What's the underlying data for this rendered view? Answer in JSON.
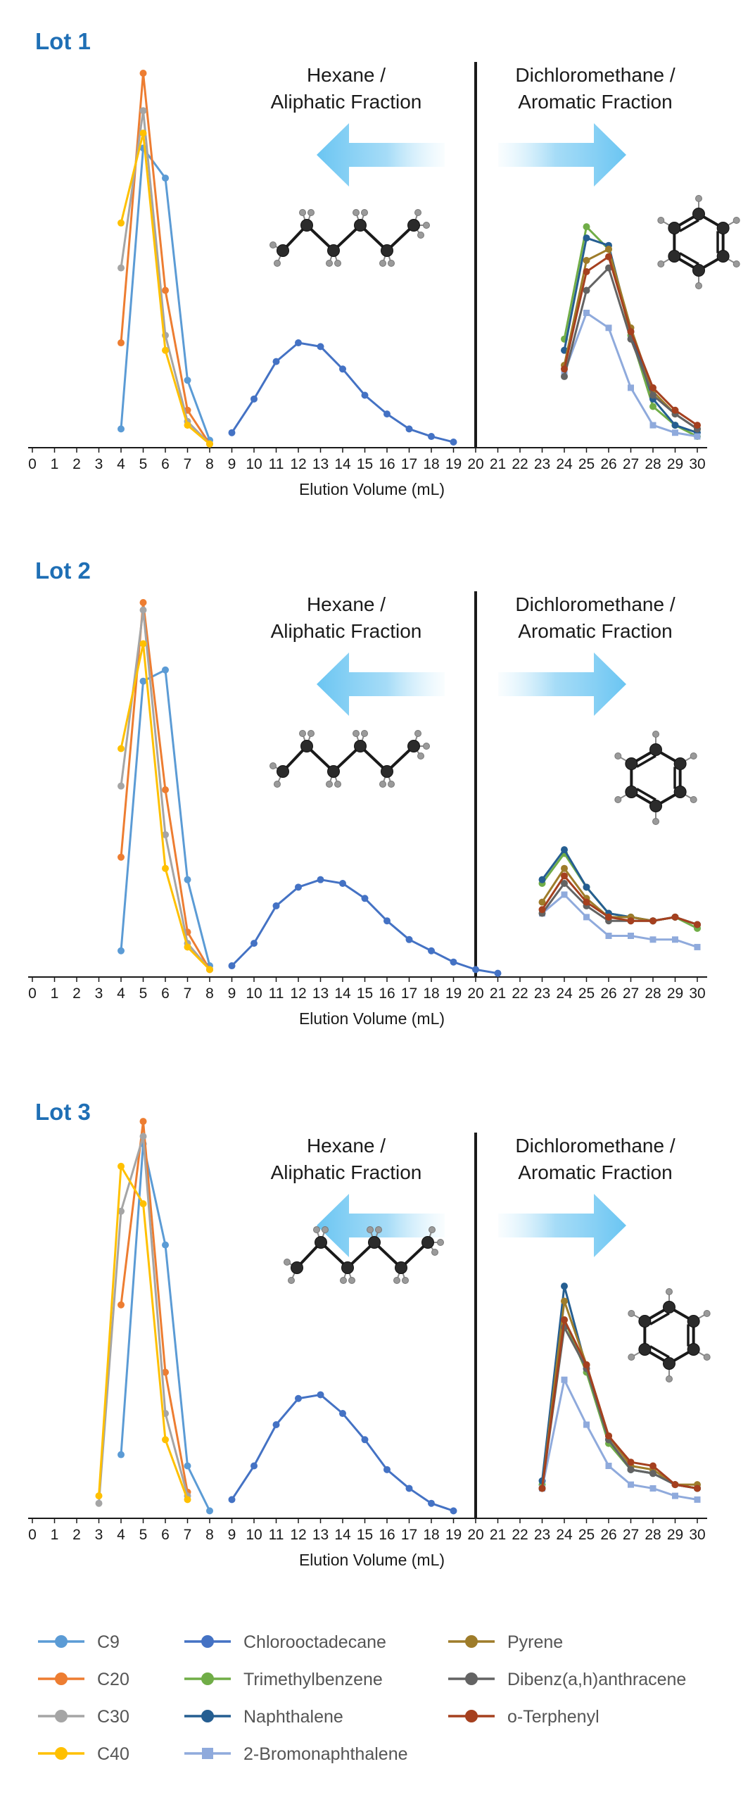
{
  "legend": [
    {
      "key": "C9",
      "label": "C9",
      "color": "#5b9bd5",
      "marker": "circle"
    },
    {
      "key": "C20",
      "label": "C20",
      "color": "#ed7d31",
      "marker": "circle"
    },
    {
      "key": "C30",
      "label": "C30",
      "color": "#a5a5a5",
      "marker": "circle"
    },
    {
      "key": "C40",
      "label": "C40",
      "color": "#ffc000",
      "marker": "circle"
    },
    {
      "key": "Chloro",
      "label": "Chlorooctadecane",
      "color": "#4472c4",
      "marker": "circle"
    },
    {
      "key": "TMB",
      "label": "Trimethylbenzene",
      "color": "#70ad47",
      "marker": "circle"
    },
    {
      "key": "Naph",
      "label": "Naphthalene",
      "color": "#255e91",
      "marker": "circle"
    },
    {
      "key": "BrNaph",
      "label": "2-Bromonaphthalene",
      "color": "#8faadc",
      "marker": "square"
    },
    {
      "key": "Pyrene",
      "label": "Pyrene",
      "color": "#9e7c2a",
      "marker": "circle"
    },
    {
      "key": "DBA",
      "label": "Dibenz(a,h)anthracene",
      "color": "#636363",
      "marker": "circle"
    },
    {
      "key": "oTer",
      "label": "o-Terphenyl",
      "color": "#a5401f",
      "marker": "circle"
    }
  ],
  "chart_data": [
    {
      "type": "line",
      "title": "Lot 1",
      "xlabel": "Elution Volume (mL)",
      "xlim": [
        0,
        30
      ],
      "ylim": [
        0,
        1
      ],
      "left_label": "Hexane / Aliphatic Fraction",
      "right_label": "Dichloromethane / Aromatic Fraction",
      "divider_x": 20,
      "series": [
        {
          "key": "C9",
          "x": [
            4,
            5,
            6,
            7,
            8
          ],
          "y": [
            0.05,
            0.8,
            0.72,
            0.18,
            0.02
          ]
        },
        {
          "key": "C20",
          "x": [
            4,
            5,
            6,
            7,
            8
          ],
          "y": [
            0.28,
            1.0,
            0.42,
            0.1,
            0.01
          ]
        },
        {
          "key": "C30",
          "x": [
            4,
            5,
            6,
            7,
            8
          ],
          "y": [
            0.48,
            0.9,
            0.3,
            0.07,
            0.01
          ]
        },
        {
          "key": "C40",
          "x": [
            4,
            5,
            6,
            7,
            8
          ],
          "y": [
            0.6,
            0.84,
            0.26,
            0.06,
            0.01
          ]
        },
        {
          "key": "Chloro",
          "x": [
            9,
            10,
            11,
            12,
            13,
            14,
            15,
            16,
            17,
            18,
            19
          ],
          "y": [
            0.04,
            0.13,
            0.23,
            0.28,
            0.27,
            0.21,
            0.14,
            0.09,
            0.05,
            0.03,
            0.015
          ]
        },
        {
          "key": "TMB",
          "x": [
            24,
            25,
            26,
            27,
            28,
            29,
            30
          ],
          "y": [
            0.29,
            0.59,
            0.53,
            0.3,
            0.11,
            0.06,
            0.03
          ]
        },
        {
          "key": "Naph",
          "x": [
            24,
            25,
            26,
            27,
            28,
            29,
            30
          ],
          "y": [
            0.26,
            0.56,
            0.54,
            0.31,
            0.13,
            0.06,
            0.04
          ]
        },
        {
          "key": "BrNaph",
          "x": [
            24,
            25,
            26,
            27,
            28,
            29,
            30
          ],
          "y": [
            0.2,
            0.36,
            0.32,
            0.16,
            0.06,
            0.04,
            0.03
          ]
        },
        {
          "key": "Pyrene",
          "x": [
            24,
            25,
            26,
            27,
            28,
            29,
            30
          ],
          "y": [
            0.22,
            0.5,
            0.53,
            0.32,
            0.15,
            0.09,
            0.05
          ]
        },
        {
          "key": "DBA",
          "x": [
            24,
            25,
            26,
            27,
            28,
            29,
            30
          ],
          "y": [
            0.19,
            0.42,
            0.48,
            0.29,
            0.14,
            0.09,
            0.05
          ]
        },
        {
          "key": "oTer",
          "x": [
            24,
            25,
            26,
            27,
            28,
            29,
            30
          ],
          "y": [
            0.21,
            0.47,
            0.51,
            0.31,
            0.16,
            0.1,
            0.06
          ]
        }
      ]
    },
    {
      "type": "line",
      "title": "Lot 2",
      "xlabel": "Elution Volume (mL)",
      "xlim": [
        0,
        30
      ],
      "ylim": [
        0,
        1
      ],
      "left_label": "Hexane / Aliphatic Fraction",
      "right_label": "Dichloromethane / Aromatic Fraction",
      "divider_x": 20,
      "series": [
        {
          "key": "C9",
          "x": [
            4,
            5,
            6,
            7,
            8
          ],
          "y": [
            0.07,
            0.79,
            0.82,
            0.26,
            0.03
          ]
        },
        {
          "key": "C20",
          "x": [
            4,
            5,
            6,
            7,
            8
          ],
          "y": [
            0.32,
            1.0,
            0.5,
            0.12,
            0.02
          ]
        },
        {
          "key": "C30",
          "x": [
            4,
            5,
            6,
            7,
            8
          ],
          "y": [
            0.51,
            0.98,
            0.38,
            0.09,
            0.02
          ]
        },
        {
          "key": "C40",
          "x": [
            4,
            5,
            6,
            7,
            8
          ],
          "y": [
            0.61,
            0.89,
            0.29,
            0.08,
            0.02
          ]
        },
        {
          "key": "Chloro",
          "x": [
            9,
            10,
            11,
            12,
            13,
            14,
            15,
            16,
            17,
            18,
            19,
            20,
            21
          ],
          "y": [
            0.03,
            0.09,
            0.19,
            0.24,
            0.26,
            0.25,
            0.21,
            0.15,
            0.1,
            0.07,
            0.04,
            0.02,
            0.01
          ]
        },
        {
          "key": "TMB",
          "x": [
            23,
            24,
            25,
            26,
            27,
            28,
            29,
            30
          ],
          "y": [
            0.25,
            0.33,
            0.24,
            0.17,
            0.16,
            0.15,
            0.16,
            0.13
          ]
        },
        {
          "key": "Naph",
          "x": [
            23,
            24,
            25,
            26,
            27,
            28,
            29,
            30
          ],
          "y": [
            0.26,
            0.34,
            0.24,
            0.17,
            0.16,
            0.15,
            0.16,
            0.14
          ]
        },
        {
          "key": "BrNaph",
          "x": [
            23,
            24,
            25,
            26,
            27,
            28,
            29,
            30
          ],
          "y": [
            0.17,
            0.22,
            0.16,
            0.11,
            0.11,
            0.1,
            0.1,
            0.08
          ]
        },
        {
          "key": "Pyrene",
          "x": [
            23,
            24,
            25,
            26,
            27,
            28,
            29,
            30
          ],
          "y": [
            0.2,
            0.29,
            0.21,
            0.16,
            0.16,
            0.15,
            0.16,
            0.14
          ]
        },
        {
          "key": "DBA",
          "x": [
            23,
            24,
            25,
            26,
            27,
            28,
            29,
            30
          ],
          "y": [
            0.17,
            0.25,
            0.19,
            0.15,
            0.15,
            0.15,
            0.16,
            0.14
          ]
        },
        {
          "key": "oTer",
          "x": [
            23,
            24,
            25,
            26,
            27,
            28,
            29,
            30
          ],
          "y": [
            0.18,
            0.27,
            0.2,
            0.16,
            0.15,
            0.15,
            0.16,
            0.14
          ]
        }
      ]
    },
    {
      "type": "line",
      "title": "Lot 3",
      "xlabel": "Elution Volume (mL)",
      "xlim": [
        0,
        30
      ],
      "ylim": [
        0,
        1
      ],
      "left_label": "Hexane / Aliphatic Fraction",
      "right_label": "Dichloromethane / Aromatic Fraction",
      "divider_x": 20,
      "series": [
        {
          "key": "C9",
          "x": [
            4,
            5,
            6,
            7,
            8
          ],
          "y": [
            0.17,
            1.0,
            0.73,
            0.14,
            0.02
          ]
        },
        {
          "key": "C20",
          "x": [
            4,
            5,
            6,
            7
          ],
          "y": [
            0.57,
            1.06,
            0.39,
            0.07
          ]
        },
        {
          "key": "C30",
          "x": [
            3,
            4,
            5,
            6,
            7
          ],
          "y": [
            0.04,
            0.82,
            1.02,
            0.28,
            0.06
          ]
        },
        {
          "key": "C40",
          "x": [
            3,
            4,
            5,
            6,
            7
          ],
          "y": [
            0.06,
            0.94,
            0.84,
            0.21,
            0.05
          ]
        },
        {
          "key": "Chloro",
          "x": [
            9,
            10,
            11,
            12,
            13,
            14,
            15,
            16,
            17,
            18,
            19
          ],
          "y": [
            0.05,
            0.14,
            0.25,
            0.32,
            0.33,
            0.28,
            0.21,
            0.13,
            0.08,
            0.04,
            0.02
          ]
        },
        {
          "key": "TMB",
          "x": [
            23,
            24,
            25,
            26,
            27,
            28,
            29,
            30
          ],
          "y": [
            0.09,
            0.53,
            0.39,
            0.2,
            0.13,
            0.12,
            0.09,
            0.08
          ]
        },
        {
          "key": "Naph",
          "x": [
            23,
            24,
            25,
            26,
            27,
            28,
            29,
            30
          ],
          "y": [
            0.1,
            0.62,
            0.4,
            0.21,
            0.13,
            0.12,
            0.09,
            0.08
          ]
        },
        {
          "key": "BrNaph",
          "x": [
            23,
            24,
            25,
            26,
            27,
            28,
            29,
            30
          ],
          "y": [
            0.08,
            0.37,
            0.25,
            0.14,
            0.09,
            0.08,
            0.06,
            0.05
          ]
        },
        {
          "key": "Pyrene",
          "x": [
            23,
            24,
            25,
            26,
            27,
            28,
            29,
            30
          ],
          "y": [
            0.08,
            0.58,
            0.41,
            0.22,
            0.14,
            0.13,
            0.09,
            0.09
          ]
        },
        {
          "key": "DBA",
          "x": [
            23,
            24,
            25,
            26,
            27,
            28,
            29,
            30
          ],
          "y": [
            0.08,
            0.51,
            0.4,
            0.21,
            0.13,
            0.12,
            0.09,
            0.08
          ]
        },
        {
          "key": "oTer",
          "x": [
            23,
            24,
            25,
            26,
            27,
            28,
            29,
            30
          ],
          "y": [
            0.08,
            0.53,
            0.41,
            0.22,
            0.15,
            0.14,
            0.09,
            0.08
          ]
        }
      ]
    }
  ]
}
